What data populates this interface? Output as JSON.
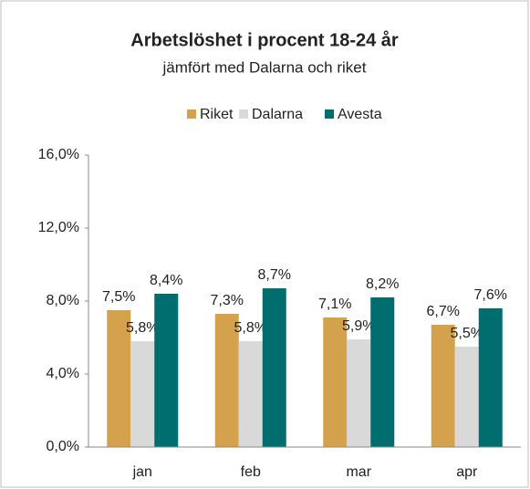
{
  "chart_data": {
    "type": "bar",
    "title": "Arbetslöshet i procent 18-24 år",
    "subtitle": "jämfört med Dalarna och riket",
    "categories": [
      "jan",
      "feb",
      "mar",
      "apr"
    ],
    "series": [
      {
        "name": "Riket",
        "color": "#d4a24c",
        "values": [
          7.5,
          7.3,
          7.1,
          6.7
        ],
        "value_labels": [
          "7,5%",
          "7,3%",
          "7,1%",
          "6,7%"
        ]
      },
      {
        "name": "Dalarna",
        "color": "#d9d9d9",
        "values": [
          5.8,
          5.8,
          5.9,
          5.5
        ],
        "value_labels": [
          "5,8%",
          "5,8%",
          "5,9%",
          "5,5%"
        ]
      },
      {
        "name": "Avesta",
        "color": "#006d6f",
        "values": [
          8.4,
          8.7,
          8.2,
          7.6
        ],
        "value_labels": [
          "8,4%",
          "8,7%",
          "8,2%",
          "7,6%"
        ]
      }
    ],
    "ylim": [
      0,
      16
    ],
    "yticks": [
      {
        "value": 0,
        "label": "0,0%"
      },
      {
        "value": 4,
        "label": "4,0%"
      },
      {
        "value": 8,
        "label": "8,0%"
      },
      {
        "value": 12,
        "label": "12,0%"
      },
      {
        "value": 16,
        "label": "16,0%"
      }
    ],
    "legend": "top"
  }
}
